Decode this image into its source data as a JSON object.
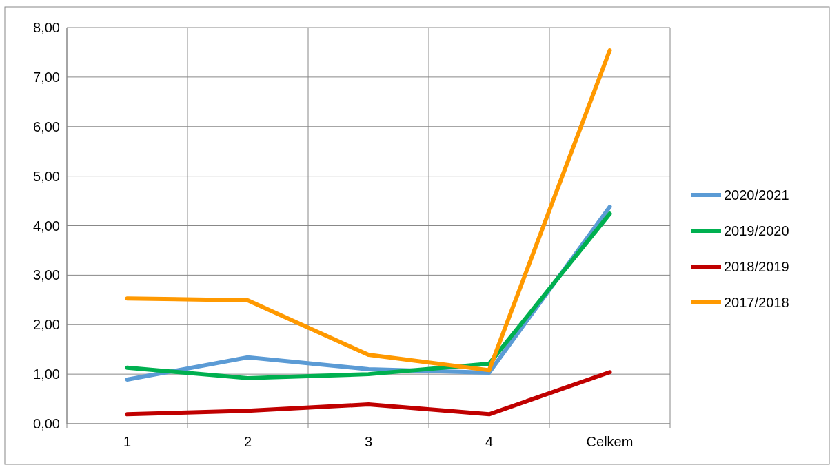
{
  "chart_data": {
    "type": "line",
    "categories": [
      "1",
      "2",
      "3",
      "4",
      "Celkem"
    ],
    "series": [
      {
        "name": "2020/2021",
        "color": "#5b9bd5",
        "values": [
          0.89,
          1.34,
          1.1,
          1.03,
          4.38
        ]
      },
      {
        "name": "2019/2020",
        "color": "#00b050",
        "values": [
          1.13,
          0.92,
          1.0,
          1.21,
          4.24
        ]
      },
      {
        "name": "2018/2019",
        "color": "#c00000",
        "values": [
          0.19,
          0.26,
          0.39,
          0.19,
          1.04
        ]
      },
      {
        "name": "2017/2018",
        "color": "#ff9900",
        "values": [
          2.53,
          2.49,
          1.39,
          1.08,
          7.54
        ]
      }
    ],
    "ylim": [
      0,
      8
    ],
    "yticks": [
      {
        "value": 0,
        "label": "0,00"
      },
      {
        "value": 1,
        "label": "1,00"
      },
      {
        "value": 2,
        "label": "2,00"
      },
      {
        "value": 3,
        "label": "3,00"
      },
      {
        "value": 4,
        "label": "4,00"
      },
      {
        "value": 5,
        "label": "5,00"
      },
      {
        "value": 6,
        "label": "6,00"
      },
      {
        "value": 7,
        "label": "7,00"
      },
      {
        "value": 8,
        "label": "8,00"
      }
    ],
    "grid": true,
    "legend": "right",
    "marker": "none",
    "line_style": "solid"
  }
}
